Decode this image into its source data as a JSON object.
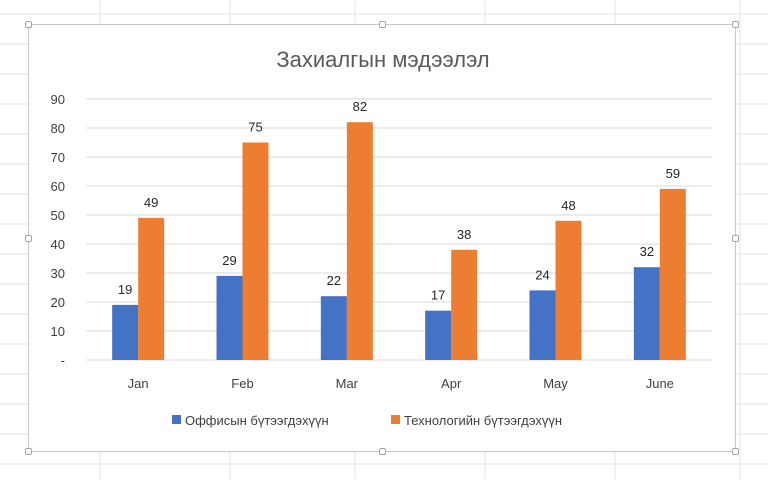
{
  "chart_data": {
    "type": "bar",
    "title": "Захиалгын мэдээлэл",
    "categories": [
      "Jan",
      "Feb",
      "Mar",
      "Apr",
      "May",
      "June"
    ],
    "series": [
      {
        "name": "Оффисын бүтээгдэхүүн",
        "color": "#4472c4",
        "values": [
          19,
          29,
          22,
          17,
          24,
          32
        ]
      },
      {
        "name": "Технологийн бүтээгдэхүүн",
        "color": "#ed7d31",
        "values": [
          49,
          75,
          82,
          38,
          48,
          59
        ]
      }
    ],
    "ylim": [
      0,
      90
    ],
    "y_ticks": [
      "-",
      "10",
      "20",
      "30",
      "40",
      "50",
      "60",
      "70",
      "80",
      "90"
    ],
    "grid": true,
    "legend_position": "bottom",
    "data_labels": true
  }
}
